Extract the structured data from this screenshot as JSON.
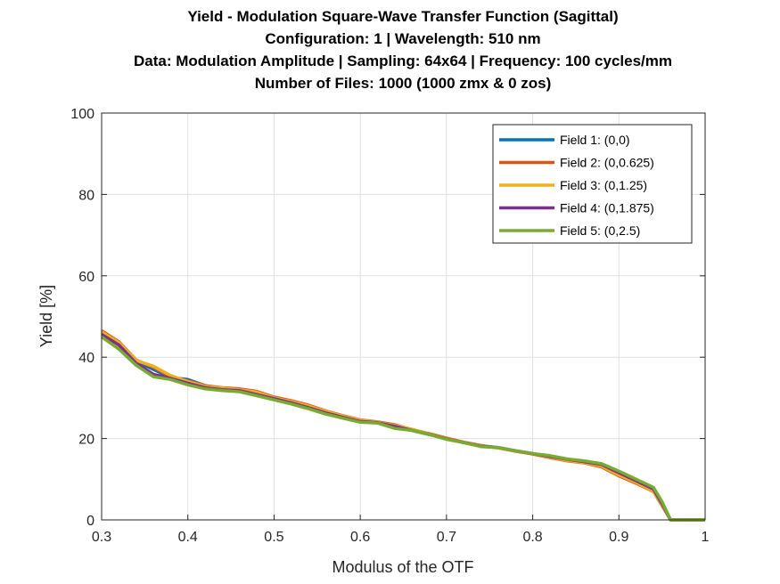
{
  "chart_data": {
    "type": "line",
    "title": [
      "Yield - Modulation Square-Wave Transfer Function (Sagittal)",
      "Configuration: 1 | Wavelength: 510 nm",
      "Data: Modulation Amplitude | Sampling: 64x64 | Frequency: 100 cycles/mm",
      "Number of Files: 1000 (1000 zmx &  0 zos)"
    ],
    "xlabel": "Modulus of the OTF",
    "ylabel": "Yield [%]",
    "xlim": [
      0.3,
      1
    ],
    "ylim": [
      0,
      100
    ],
    "xticks": [
      "0.3",
      "0.4",
      "0.5",
      "0.6",
      "0.7",
      "0.8",
      "0.9",
      "1"
    ],
    "yticks": [
      "0",
      "20",
      "40",
      "60",
      "80",
      "100"
    ],
    "grid": true,
    "legend_position": "top-right",
    "x": [
      0.3,
      0.32,
      0.34,
      0.36,
      0.38,
      0.4,
      0.42,
      0.44,
      0.46,
      0.48,
      0.5,
      0.52,
      0.54,
      0.56,
      0.58,
      0.6,
      0.62,
      0.64,
      0.66,
      0.68,
      0.7,
      0.72,
      0.74,
      0.76,
      0.78,
      0.8,
      0.82,
      0.84,
      0.86,
      0.88,
      0.9,
      0.92,
      0.94,
      0.95,
      0.96,
      0.98,
      1.0
    ],
    "series": [
      {
        "name": "Field 1: (0,0)",
        "color": "#0072BD",
        "values": [
          46,
          43.5,
          39,
          37,
          35,
          34.5,
          33,
          32.3,
          32,
          31.3,
          30,
          29,
          28,
          26.5,
          25.5,
          24.5,
          24,
          23.3,
          22,
          21,
          20,
          19,
          18.2,
          17.8,
          17,
          16.3,
          15.5,
          14.8,
          14.2,
          13.3,
          11.2,
          9.3,
          7.3,
          3.8,
          0,
          0,
          0
        ]
      },
      {
        "name": "Field 2: (0,0.625)",
        "color": "#D95319",
        "values": [
          46.5,
          43.8,
          39.3,
          37.5,
          35.2,
          34.2,
          33,
          32.5,
          32.2,
          31.6,
          30.2,
          29.3,
          28.2,
          26.8,
          25.6,
          24.6,
          24.1,
          23.4,
          22.2,
          21.2,
          20.1,
          19.1,
          18.3,
          17.7,
          16.9,
          16.2,
          15.3,
          14.5,
          14,
          13,
          10.8,
          9,
          7,
          3.5,
          0,
          0,
          0
        ]
      },
      {
        "name": "Field 3: (0,1.25)",
        "color": "#EDB120",
        "values": [
          46.2,
          43.6,
          39.2,
          37.8,
          35.5,
          34,
          32.8,
          32.4,
          32,
          31.4,
          30,
          29.1,
          28,
          26.7,
          25.5,
          24.5,
          24,
          23.2,
          22.3,
          21.1,
          20,
          19,
          18.2,
          17.7,
          17,
          16.3,
          15.4,
          14.6,
          14.1,
          13.2,
          11,
          9.2,
          7.1,
          3.6,
          0,
          0,
          0
        ]
      },
      {
        "name": "Field 4: (0,1.875)",
        "color": "#7E2F8E",
        "values": [
          45.6,
          43,
          38.5,
          35.8,
          34.8,
          33.6,
          32.5,
          32,
          31.8,
          30.8,
          29.8,
          28.8,
          27.6,
          26.3,
          25.2,
          24.2,
          23.9,
          23,
          22,
          21,
          19.9,
          19,
          18.1,
          17.8,
          17,
          16.3,
          15.6,
          14.9,
          14.3,
          13.6,
          11.6,
          9.6,
          7.6,
          4,
          0,
          0,
          0
        ]
      },
      {
        "name": "Field 5: (0,2.5)",
        "color": "#77AC30",
        "values": [
          45,
          42,
          38,
          35.2,
          34.5,
          33.2,
          32.2,
          31.8,
          31.5,
          30.5,
          29.5,
          28.5,
          27.3,
          26,
          25,
          24,
          23.8,
          22.5,
          22,
          21,
          19.8,
          19,
          18,
          17.8,
          17,
          16.3,
          15.8,
          15,
          14.5,
          13.8,
          12,
          10,
          8,
          4.5,
          0,
          0,
          0
        ]
      }
    ]
  }
}
